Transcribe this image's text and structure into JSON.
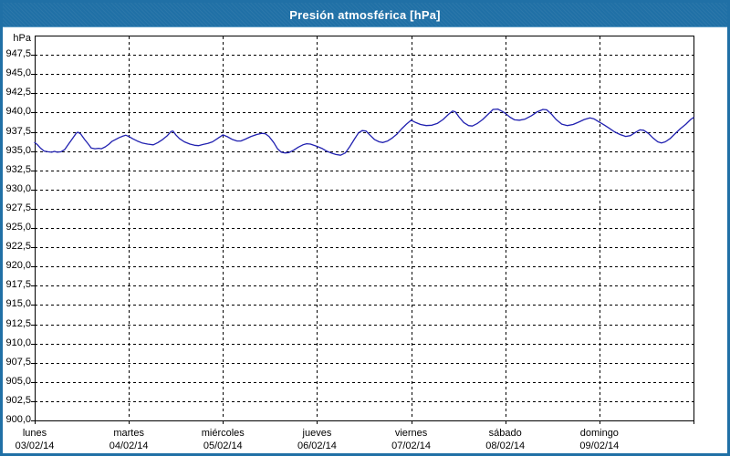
{
  "window": {
    "title": "Presión atmosférica [hPa]",
    "accent_color": "#2070a6",
    "titlebar_text_color": "#ffffff",
    "background_color": "#ffffff"
  },
  "chart_data": {
    "type": "line",
    "title": "Presión atmosférica [hPa]",
    "legend": "none",
    "grid": "dashed",
    "y_axis": {
      "unit_label": "hPa",
      "min": 900,
      "max": 950,
      "tick_step": 2.5,
      "tick_labels": [
        "947,5",
        "945,0",
        "942,5",
        "940,0",
        "937,5",
        "935,0",
        "932,5",
        "930,0",
        "927,5",
        "925,0",
        "922,5",
        "920,0",
        "917,5",
        "915,0",
        "912,5",
        "910,0",
        "907,5",
        "905,0",
        "902,5",
        "900,0"
      ]
    },
    "x_axis": {
      "span_days": 7,
      "days": [
        {
          "name": "lunes",
          "date": "03/02/14"
        },
        {
          "name": "martes",
          "date": "04/02/14"
        },
        {
          "name": "miércoles",
          "date": "05/02/14"
        },
        {
          "name": "jueves",
          "date": "06/02/14"
        },
        {
          "name": "viernes",
          "date": "07/02/14"
        },
        {
          "name": "sábado",
          "date": "08/02/14"
        },
        {
          "name": "domingo",
          "date": "09/02/14"
        }
      ]
    },
    "series": [
      {
        "name": "Presión atmosférica",
        "color": "#2121b0",
        "points": [
          [
            0.0,
            936.1
          ],
          [
            0.03,
            935.8
          ],
          [
            0.06,
            935.4
          ],
          [
            0.1,
            935.0
          ],
          [
            0.14,
            934.9
          ],
          [
            0.18,
            934.85
          ],
          [
            0.21,
            934.95
          ],
          [
            0.24,
            934.85
          ],
          [
            0.28,
            934.9
          ],
          [
            0.32,
            935.2
          ],
          [
            0.36,
            935.9
          ],
          [
            0.4,
            936.6
          ],
          [
            0.44,
            937.3
          ],
          [
            0.46,
            937.45
          ],
          [
            0.49,
            937.2
          ],
          [
            0.53,
            936.5
          ],
          [
            0.57,
            935.9
          ],
          [
            0.6,
            935.4
          ],
          [
            0.64,
            935.3
          ],
          [
            0.68,
            935.35
          ],
          [
            0.71,
            935.3
          ],
          [
            0.75,
            935.55
          ],
          [
            0.79,
            935.9
          ],
          [
            0.82,
            936.25
          ],
          [
            0.86,
            936.5
          ],
          [
            0.9,
            936.75
          ],
          [
            0.94,
            936.95
          ],
          [
            0.97,
            937.05
          ],
          [
            1.0,
            936.9
          ],
          [
            1.04,
            936.6
          ],
          [
            1.09,
            936.3
          ],
          [
            1.14,
            936.05
          ],
          [
            1.2,
            935.9
          ],
          [
            1.26,
            935.8
          ],
          [
            1.31,
            936.1
          ],
          [
            1.36,
            936.5
          ],
          [
            1.41,
            937.0
          ],
          [
            1.45,
            937.55
          ],
          [
            1.47,
            937.6
          ],
          [
            1.5,
            937.1
          ],
          [
            1.54,
            936.6
          ],
          [
            1.59,
            936.2
          ],
          [
            1.65,
            935.9
          ],
          [
            1.7,
            935.75
          ],
          [
            1.74,
            935.7
          ],
          [
            1.79,
            935.85
          ],
          [
            1.84,
            936.0
          ],
          [
            1.89,
            936.2
          ],
          [
            1.94,
            936.6
          ],
          [
            2.0,
            937.1
          ],
          [
            2.05,
            936.85
          ],
          [
            2.1,
            936.5
          ],
          [
            2.15,
            936.3
          ],
          [
            2.19,
            936.3
          ],
          [
            2.24,
            936.55
          ],
          [
            2.3,
            936.9
          ],
          [
            2.36,
            937.15
          ],
          [
            2.41,
            937.3
          ],
          [
            2.45,
            937.25
          ],
          [
            2.49,
            936.9
          ],
          [
            2.54,
            936.1
          ],
          [
            2.58,
            935.3
          ],
          [
            2.62,
            934.85
          ],
          [
            2.66,
            934.75
          ],
          [
            2.7,
            934.8
          ],
          [
            2.75,
            935.1
          ],
          [
            2.8,
            935.5
          ],
          [
            2.85,
            935.8
          ],
          [
            2.89,
            935.95
          ],
          [
            2.93,
            935.9
          ],
          [
            3.0,
            935.6
          ],
          [
            3.05,
            935.35
          ],
          [
            3.1,
            935.0
          ],
          [
            3.15,
            934.75
          ],
          [
            3.2,
            934.55
          ],
          [
            3.25,
            934.45
          ],
          [
            3.3,
            934.75
          ],
          [
            3.35,
            935.6
          ],
          [
            3.4,
            936.6
          ],
          [
            3.44,
            937.35
          ],
          [
            3.48,
            937.65
          ],
          [
            3.52,
            937.6
          ],
          [
            3.56,
            937.1
          ],
          [
            3.61,
            936.5
          ],
          [
            3.66,
            936.2
          ],
          [
            3.7,
            936.1
          ],
          [
            3.75,
            936.3
          ],
          [
            3.8,
            936.7
          ],
          [
            3.85,
            937.2
          ],
          [
            3.9,
            937.9
          ],
          [
            3.95,
            938.5
          ],
          [
            4.0,
            939.0
          ],
          [
            4.05,
            938.7
          ],
          [
            4.1,
            938.45
          ],
          [
            4.16,
            938.3
          ],
          [
            4.22,
            938.35
          ],
          [
            4.28,
            938.6
          ],
          [
            4.34,
            939.1
          ],
          [
            4.4,
            939.8
          ],
          [
            4.44,
            940.2
          ],
          [
            4.47,
            940.1
          ],
          [
            4.51,
            939.4
          ],
          [
            4.56,
            938.7
          ],
          [
            4.61,
            938.3
          ],
          [
            4.65,
            938.25
          ],
          [
            4.7,
            938.55
          ],
          [
            4.76,
            939.1
          ],
          [
            4.82,
            939.8
          ],
          [
            4.87,
            940.4
          ],
          [
            4.92,
            940.45
          ],
          [
            4.96,
            940.2
          ],
          [
            5.0,
            939.9
          ],
          [
            5.05,
            939.4
          ],
          [
            5.1,
            939.05
          ],
          [
            5.15,
            939.0
          ],
          [
            5.21,
            939.15
          ],
          [
            5.28,
            939.6
          ],
          [
            5.34,
            940.1
          ],
          [
            5.4,
            940.4
          ],
          [
            5.44,
            940.35
          ],
          [
            5.49,
            939.8
          ],
          [
            5.54,
            939.1
          ],
          [
            5.6,
            938.5
          ],
          [
            5.66,
            938.3
          ],
          [
            5.72,
            938.45
          ],
          [
            5.78,
            938.75
          ],
          [
            5.84,
            939.1
          ],
          [
            5.9,
            939.3
          ],
          [
            5.94,
            939.2
          ],
          [
            6.0,
            938.75
          ],
          [
            6.05,
            938.4
          ],
          [
            6.1,
            938.0
          ],
          [
            6.16,
            937.5
          ],
          [
            6.22,
            937.15
          ],
          [
            6.28,
            936.9
          ],
          [
            6.33,
            937.0
          ],
          [
            6.38,
            937.4
          ],
          [
            6.43,
            937.75
          ],
          [
            6.47,
            937.7
          ],
          [
            6.52,
            937.3
          ],
          [
            6.57,
            936.7
          ],
          [
            6.62,
            936.2
          ],
          [
            6.66,
            936.05
          ],
          [
            6.7,
            936.2
          ],
          [
            6.75,
            936.6
          ],
          [
            6.8,
            937.2
          ],
          [
            6.86,
            937.9
          ],
          [
            6.92,
            938.5
          ],
          [
            6.97,
            939.1
          ],
          [
            7.0,
            939.35
          ]
        ]
      }
    ]
  }
}
